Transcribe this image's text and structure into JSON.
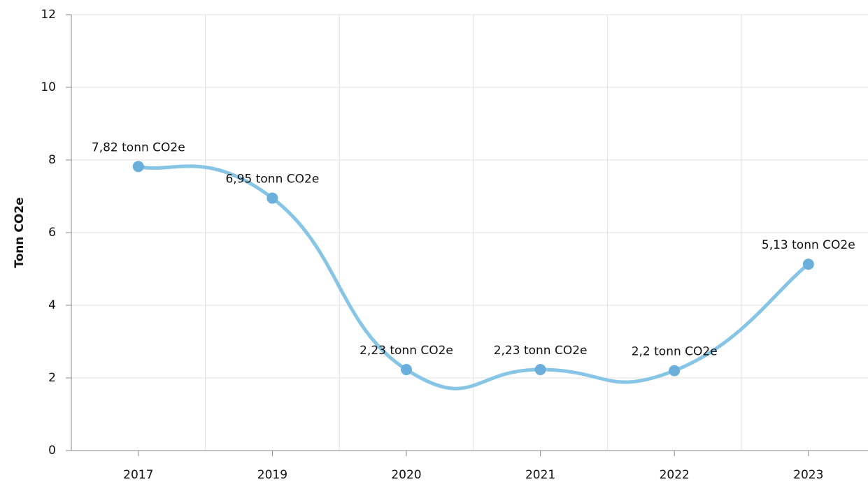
{
  "chart_data": {
    "type": "line",
    "y_label": "Tonn CO2e",
    "categories": [
      "2017",
      "2019",
      "2020",
      "2021",
      "2022",
      "2023"
    ],
    "series": [
      {
        "name": "Tonn CO2e",
        "color": "#86c5e5",
        "marker_color": "#6aafdb",
        "values": [
          7.82,
          6.95,
          2.23,
          2.23,
          2.2,
          5.13
        ],
        "value_labels": [
          "7,82 tonn CO2e",
          "6,95 tonn CO2e",
          "2,23 tonn CO2e",
          "2,23 tonn CO2e",
          "2,2 tonn CO2e",
          "5,13 tonn CO2e"
        ]
      }
    ],
    "ylim": [
      0,
      12
    ],
    "yticks": [
      0,
      2,
      4,
      6,
      8,
      10,
      12
    ],
    "grid": true,
    "smooth": true
  }
}
